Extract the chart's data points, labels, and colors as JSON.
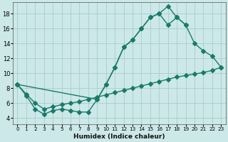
{
  "xlabel": "Humidex (Indice chaleur)",
  "background_color": "#cce8e8",
  "grid_color": "#aacccc",
  "line_color": "#1a7a6a",
  "xlim": [
    -0.5,
    23.5
  ],
  "ylim": [
    3.2,
    19.5
  ],
  "yticks": [
    4,
    6,
    8,
    10,
    12,
    14,
    16,
    18
  ],
  "xticks": [
    0,
    1,
    2,
    3,
    4,
    5,
    6,
    7,
    8,
    9,
    10,
    11,
    12,
    13,
    14,
    15,
    16,
    17,
    18,
    19,
    20,
    21,
    22,
    23
  ],
  "line1_x": [
    0,
    1,
    2,
    3,
    4,
    5,
    6,
    7,
    8,
    9,
    10,
    11,
    12,
    13,
    14,
    15,
    16,
    17,
    18,
    19
  ],
  "line1_y": [
    8.5,
    7.0,
    5.2,
    4.5,
    5.0,
    5.2,
    5.0,
    4.8,
    4.8,
    6.5,
    8.5,
    10.8,
    13.5,
    14.5,
    16.0,
    17.5,
    18.0,
    19.0,
    17.5,
    16.5
  ],
  "line2_x": [
    0,
    1,
    2,
    3,
    4,
    5,
    6,
    7,
    8,
    9,
    10,
    11,
    12,
    13,
    14,
    15,
    16,
    17,
    18,
    19,
    20,
    21,
    22,
    23
  ],
  "line2_y": [
    8.5,
    7.2,
    6.0,
    5.2,
    5.5,
    5.8,
    6.0,
    6.2,
    6.5,
    6.8,
    7.1,
    7.4,
    7.7,
    8.0,
    8.3,
    8.6,
    8.9,
    9.2,
    9.5,
    9.7,
    9.9,
    10.1,
    10.4,
    10.8
  ],
  "line3_x": [
    0,
    9,
    10,
    11,
    12,
    13,
    14,
    15,
    16,
    17,
    18,
    19,
    20,
    21,
    22,
    23
  ],
  "line3_y": [
    8.5,
    6.5,
    8.5,
    10.8,
    13.5,
    14.5,
    16.0,
    17.5,
    18.0,
    16.5,
    17.5,
    16.5,
    14.0,
    13.0,
    12.3,
    10.8
  ],
  "linewidth": 1.0,
  "markersize": 3.0
}
